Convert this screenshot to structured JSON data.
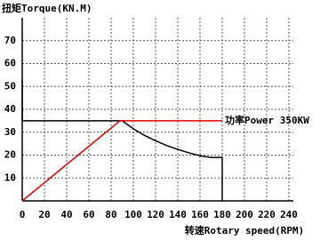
{
  "chart_data": {
    "type": "line",
    "title": "扭矩Torque(KN.M)",
    "x_label": "转速Rotary speed(RPM)",
    "annotation": "功率Power  350KW",
    "xlim": [
      0,
      240
    ],
    "xticks": [
      0,
      20,
      40,
      60,
      80,
      100,
      120,
      140,
      160,
      180,
      200,
      220,
      240
    ],
    "ylim": [
      0,
      80
    ],
    "yticks": [
      10,
      20,
      30,
      40,
      50,
      60,
      70
    ],
    "grid": true,
    "series": [
      {
        "color": "#000000",
        "x": [
          0,
          0,
          90,
          100,
          110,
          120,
          130,
          140,
          150,
          160,
          170,
          180,
          180
        ],
        "values": [
          53,
          35,
          35,
          31.5,
          28.6,
          26.3,
          24.2,
          22.5,
          21,
          19.7,
          19,
          19,
          0
        ]
      },
      {
        "color": "#e00000",
        "x": [
          0,
          88,
          180
        ],
        "values": [
          0,
          35,
          35
        ]
      }
    ]
  }
}
